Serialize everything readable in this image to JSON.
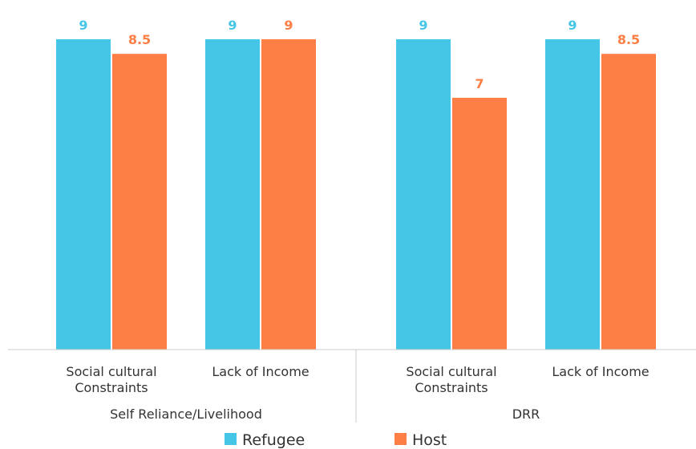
{
  "chart_data": {
    "type": "bar",
    "categories": [
      "Social cultural Constraints",
      "Lack of Income",
      "Social cultural Constraints",
      "Lack of Income"
    ],
    "groups": [
      "Self Reliance/Livelihood",
      "DRR"
    ],
    "series": [
      {
        "name": "Refugee",
        "color": "#45c6e6",
        "values": [
          9,
          9,
          9,
          9
        ]
      },
      {
        "name": "Host",
        "color": "#fe7f45",
        "values": [
          8.5,
          9,
          7,
          8.5
        ]
      }
    ],
    "ylim": [
      -1.6,
      9.6
    ]
  }
}
